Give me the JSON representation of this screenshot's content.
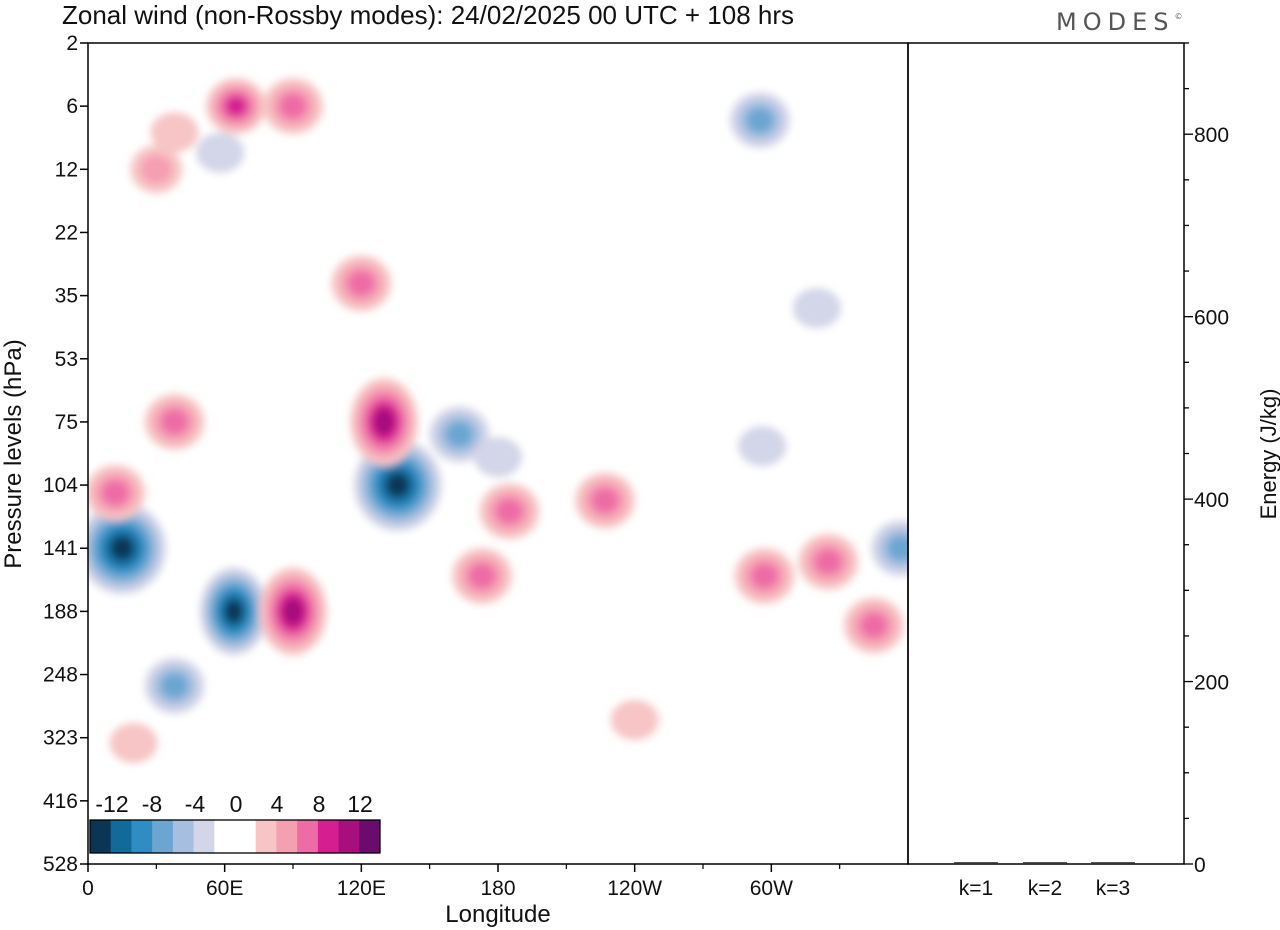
{
  "header": {
    "title": "Zonal wind (non-Rossby modes):  24/02/2025  00 UTC  + 108 hrs",
    "brand": "MODES",
    "brand_mark": "©"
  },
  "colors": {
    "neg": [
      "#0a3554",
      "#126a9a",
      "#2f8dc4",
      "#6ba6d2",
      "#a6bedf",
      "#d3d5e8"
    ],
    "pos": [
      "#f7c5c5",
      "#f59fb3",
      "#ee6ca6",
      "#d51f91",
      "#a60f7d",
      "#6b0b6e"
    ],
    "frame": "#000000"
  },
  "chart_data": [
    {
      "type": "heatmap",
      "xlabel": "Longitude",
      "ylabel": "Pressure levels (hPa)",
      "x_ticks": [
        "0",
        "60E",
        "120E",
        "180",
        "120W",
        "60W"
      ],
      "y_ticks": [
        "2",
        "6",
        "12",
        "22",
        "35",
        "53",
        "75",
        "104",
        "141",
        "188",
        "248",
        "323",
        "416",
        "528"
      ],
      "colorbar_ticks": [
        "-12",
        "-8",
        "-4",
        "0",
        "4",
        "8",
        "12"
      ],
      "colorbar_levels": [
        -14,
        -12,
        -10,
        -8,
        -6,
        -4,
        -2,
        2,
        4,
        6,
        8,
        10,
        12,
        14
      ],
      "features": [
        {
          "lon": 15,
          "level": 141,
          "value": -14
        },
        {
          "lon": 38,
          "level": 260,
          "value": -6
        },
        {
          "lon": 64,
          "level": 188,
          "value": -11
        },
        {
          "lon": 136,
          "level": 104,
          "value": -14
        },
        {
          "lon": 163,
          "level": 80,
          "value": -6
        },
        {
          "lon": 180,
          "level": 90,
          "value": -2
        },
        {
          "lon": 357,
          "level": 141,
          "value": -6
        },
        {
          "lon": 295,
          "level": 7,
          "value": -6
        },
        {
          "lon": 320,
          "level": 38,
          "value": -2
        },
        {
          "lon": 296,
          "level": 85,
          "value": -2
        },
        {
          "lon": 58,
          "level": 10,
          "value": -2
        },
        {
          "lon": 90,
          "level": 188,
          "value": 10
        },
        {
          "lon": 130,
          "level": 75,
          "value": 10
        },
        {
          "lon": 120,
          "level": 32,
          "value": 6
        },
        {
          "lon": 38,
          "level": 75,
          "value": 6
        },
        {
          "lon": 12,
          "level": 108,
          "value": 6
        },
        {
          "lon": 65,
          "level": 6,
          "value": 8
        },
        {
          "lon": 90,
          "level": 6,
          "value": 6
        },
        {
          "lon": 185,
          "level": 118,
          "value": 6
        },
        {
          "lon": 173,
          "level": 160,
          "value": 6
        },
        {
          "lon": 227,
          "level": 112,
          "value": 6
        },
        {
          "lon": 297,
          "level": 160,
          "value": 6
        },
        {
          "lon": 325,
          "level": 150,
          "value": 6
        },
        {
          "lon": 345,
          "level": 200,
          "value": 6
        },
        {
          "lon": 38,
          "level": 8,
          "value": 2
        },
        {
          "lon": 30,
          "level": 12,
          "value": 4
        },
        {
          "lon": 240,
          "level": 300,
          "value": 2
        },
        {
          "lon": 20,
          "level": 330,
          "value": 2
        }
      ]
    },
    {
      "type": "bar",
      "categories": [
        "k=1",
        "k=2",
        "k=3"
      ],
      "values": [
        2,
        2,
        2
      ],
      "ylabel": "Energy (J/kg)",
      "y_ticks": [
        "0",
        "200",
        "400",
        "600",
        "800"
      ],
      "ylim": [
        0,
        900
      ]
    }
  ]
}
